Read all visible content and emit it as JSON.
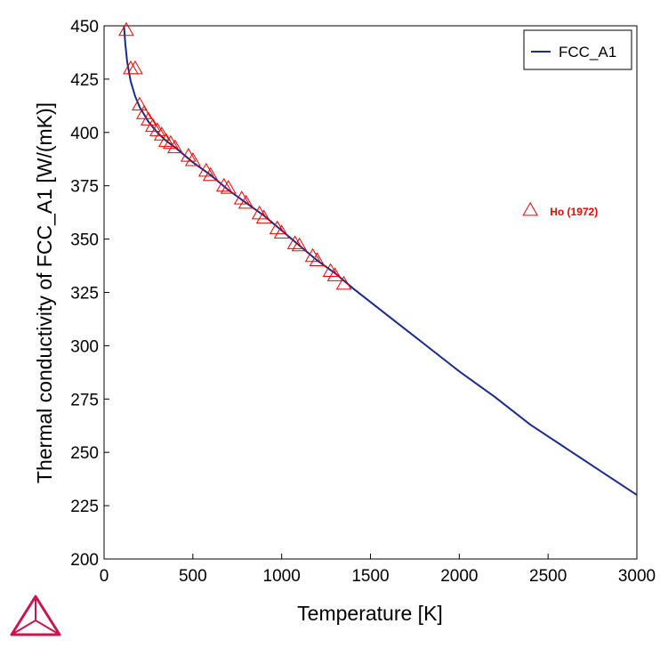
{
  "chart_data": {
    "type": "line",
    "xlabel": "Temperature [K]",
    "ylabel": "Thermal conductivity of FCC_A1 [W/(mK)]",
    "xlim": [
      0,
      3000
    ],
    "ylim": [
      200,
      450
    ],
    "xticks": [
      0,
      500,
      1000,
      1500,
      2000,
      2500,
      3000
    ],
    "yticks": [
      200,
      225,
      250,
      275,
      300,
      325,
      350,
      375,
      400,
      425,
      450
    ],
    "grid": false,
    "legend_position": "top-right",
    "series": [
      {
        "name": "FCC_A1",
        "type": "line",
        "color": "#1a2a8a",
        "x": [
          110,
          120,
          130,
          150,
          175,
          200,
          250,
          300,
          350,
          400,
          500,
          600,
          700,
          800,
          900,
          1000,
          1100,
          1200,
          1300,
          1400,
          1600,
          1800,
          2000,
          2200,
          2400,
          2600,
          2800,
          3000
        ],
        "y": [
          452,
          441,
          433,
          424,
          417,
          412,
          405,
          400,
          396,
          393,
          386,
          380,
          373,
          367,
          361,
          354,
          347,
          340,
          334,
          327,
          314,
          301,
          288,
          276,
          263,
          252,
          241,
          230
        ]
      },
      {
        "name": "Ho (1972)",
        "type": "scatter",
        "marker": "triangle-open",
        "color": "#ee0000",
        "x": [
          125,
          150,
          175,
          200,
          225,
          250,
          275,
          300,
          325,
          350,
          375,
          400,
          475,
          500,
          575,
          600,
          675,
          700,
          775,
          800,
          875,
          900,
          975,
          1000,
          1075,
          1100,
          1175,
          1200,
          1275,
          1300,
          1350
        ],
        "y": [
          448,
          430,
          430,
          413,
          409,
          406,
          403,
          401,
          399,
          396,
          395,
          393,
          389,
          387,
          382,
          380,
          375,
          374,
          369,
          367,
          362,
          360,
          355,
          353,
          348,
          347,
          342,
          340,
          335,
          333,
          329
        ]
      }
    ],
    "annotations": [
      {
        "text": "Ho (1972)",
        "x": 2400,
        "y": 362,
        "marker": "triangle-open",
        "color": "#ee0000"
      }
    ]
  },
  "logo": {
    "name": "thermo-calc-logo",
    "color": "#c8174f"
  }
}
